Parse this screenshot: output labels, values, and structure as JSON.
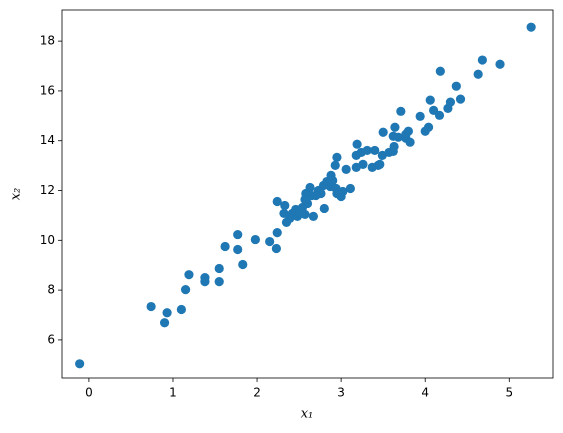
{
  "chart_data": {
    "type": "scatter",
    "xlabel": "x₁",
    "ylabel": "x₂",
    "color": "#1f77b4",
    "x": [
      -0.11,
      0.74,
      0.93,
      0.9,
      1.1,
      1.15,
      1.19,
      1.38,
      1.38,
      1.55,
      1.55,
      1.62,
      1.77,
      1.77,
      1.83,
      1.98,
      2.15,
      2.23,
      2.24,
      2.24,
      2.32,
      2.33,
      2.35,
      2.39,
      2.42,
      2.48,
      2.46,
      2.51,
      2.54,
      2.57,
      2.6,
      2.58,
      2.63,
      2.57,
      2.65,
      2.67,
      2.73,
      2.79,
      2.76,
      2.7,
      2.83,
      2.8,
      2.87,
      2.88,
      2.9,
      2.94,
      2.95,
      3.0,
      2.93,
      2.95,
      3.06,
      3.11,
      3.18,
      3.18,
      3.19,
      3.24,
      3.26,
      3.31,
      3.37,
      3.4,
      3.44,
      3.49,
      3.5,
      3.46,
      3.57,
      3.62,
      3.64,
      3.68,
      3.71,
      3.77,
      3.8,
      3.82,
      3.77,
      3.94,
      4.0,
      4.04,
      4.06,
      4.1,
      4.18,
      4.17,
      4.27,
      4.3,
      4.37,
      4.42,
      4.63,
      4.68,
      4.89,
      5.26,
      3.63,
      3.62,
      3.02
    ],
    "y": [
      5.04,
      7.34,
      7.09,
      6.69,
      7.22,
      8.02,
      8.62,
      8.5,
      8.34,
      8.34,
      8.87,
      9.75,
      10.23,
      9.63,
      9.03,
      10.03,
      9.95,
      9.67,
      10.31,
      11.56,
      11.08,
      11.4,
      10.72,
      10.88,
      11.08,
      10.96,
      11.24,
      11.08,
      11.32,
      11.04,
      11.48,
      11.88,
      12.12,
      11.64,
      11.8,
      10.96,
      12.0,
      12.2,
      11.88,
      11.8,
      12.36,
      11.28,
      12.16,
      12.61,
      12.4,
      12.08,
      11.88,
      11.76,
      13.01,
      13.33,
      12.85,
      12.08,
      12.93,
      13.41,
      13.86,
      13.53,
      13.05,
      13.61,
      12.93,
      13.61,
      13.01,
      13.41,
      14.34,
      13.05,
      13.53,
      14.18,
      14.54,
      14.14,
      15.18,
      14.1,
      14.38,
      13.94,
      14.26,
      14.98,
      14.38,
      14.54,
      15.63,
      15.22,
      16.79,
      15.02,
      15.3,
      15.55,
      16.19,
      15.67,
      16.67,
      17.24,
      17.07,
      18.56,
      13.77,
      13.57,
      11.96
    ],
    "xlim": [
      -0.32,
      5.52
    ],
    "xticks": [
      0,
      1,
      2,
      3,
      4,
      5
    ],
    "ylim": [
      4.47,
      19.25
    ],
    "yticks": [
      6,
      8,
      10,
      12,
      14,
      16,
      18
    ]
  }
}
